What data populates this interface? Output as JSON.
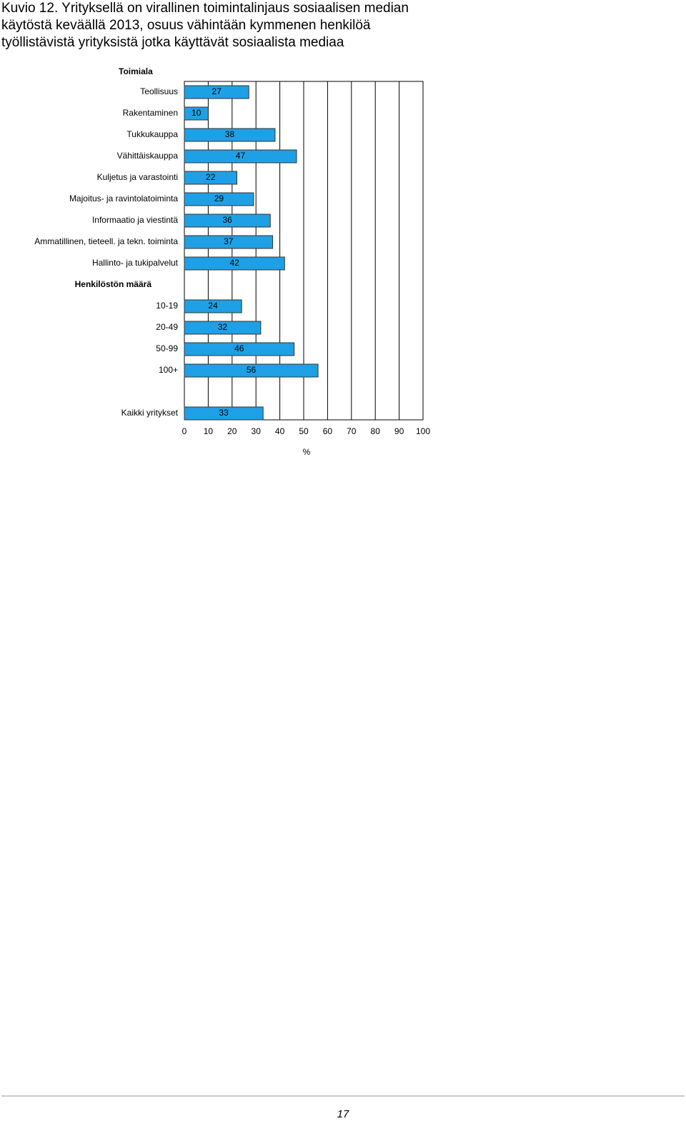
{
  "title": [
    "Kuvio 12. Yrityksellä on virallinen toimintalinjaus sosiaalisen median",
    "käytöstä keväällä 2013, osuus vähintään kymmenen henkilöä",
    "työllistävistä yrityksistä jotka käyttävät sosiaalista mediaa"
  ],
  "chart_data": {
    "type": "hbar",
    "group_title": "Toimiala",
    "categories": [
      "Teollisuus",
      "Rakentaminen",
      "Tukkukauppa",
      "Vähittäiskauppa",
      "Kuljetus ja varastointi",
      "Majoitus- ja ravintolatoiminta",
      "Informaatio ja viestintä",
      "Ammatillinen, tieteell. ja tekn. toiminta",
      "Hallinto- ja tukipalvelut",
      "Henkilöstön määrä",
      "10-19",
      "20-49",
      "50-99",
      "100+",
      null,
      "Kaikki yritykset"
    ],
    "values": [
      27,
      10,
      38,
      47,
      22,
      29,
      36,
      37,
      42,
      null,
      24,
      32,
      46,
      56,
      null,
      33
    ],
    "color": "#1ea0e6",
    "xlim": [
      0,
      100
    ],
    "xticks": [
      0,
      10,
      20,
      30,
      40,
      50,
      60,
      70,
      80,
      90,
      100
    ],
    "xlabel": "%",
    "grid": true
  },
  "page_number": "17"
}
